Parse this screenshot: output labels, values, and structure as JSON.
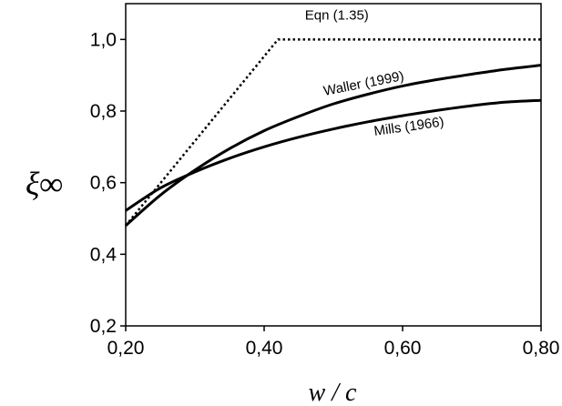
{
  "chart_data": {
    "type": "line",
    "title": "",
    "xlabel": "w / c",
    "ylabel": "ξ∞",
    "xlim": [
      0.2,
      0.8
    ],
    "ylim": [
      0.2,
      1.1
    ],
    "grid": false,
    "x_ticks": [
      {
        "value": 0.2,
        "label": "0,20"
      },
      {
        "value": 0.4,
        "label": "0,40"
      },
      {
        "value": 0.6,
        "label": "0,60"
      },
      {
        "value": 0.8,
        "label": "0,80"
      }
    ],
    "y_ticks": [
      {
        "value": 0.2,
        "label": "0,2"
      },
      {
        "value": 0.4,
        "label": "0,4"
      },
      {
        "value": 0.6,
        "label": "0,6"
      },
      {
        "value": 0.8,
        "label": "0,8"
      },
      {
        "value": 1.0,
        "label": "1,0"
      }
    ],
    "series": [
      {
        "name": "Eqn (1.35)",
        "style": "dotted",
        "x": [
          0.2,
          0.42,
          0.8
        ],
        "y": [
          0.48,
          1.0,
          1.0
        ]
      },
      {
        "name": "Waller (1999)",
        "style": "solid",
        "x": [
          0.2,
          0.25,
          0.3,
          0.35,
          0.4,
          0.45,
          0.5,
          0.55,
          0.6,
          0.65,
          0.7,
          0.75,
          0.8
        ],
        "y": [
          0.48,
          0.565,
          0.635,
          0.695,
          0.745,
          0.785,
          0.82,
          0.847,
          0.87,
          0.888,
          0.903,
          0.917,
          0.928
        ]
      },
      {
        "name": "Mills (1966)",
        "style": "solid",
        "x": [
          0.2,
          0.25,
          0.3,
          0.35,
          0.4,
          0.45,
          0.5,
          0.55,
          0.6,
          0.65,
          0.7,
          0.75,
          0.8
        ],
        "y": [
          0.522,
          0.585,
          0.63,
          0.668,
          0.7,
          0.727,
          0.75,
          0.77,
          0.787,
          0.802,
          0.815,
          0.825,
          0.83
        ]
      }
    ],
    "annotations": [
      {
        "series": "Eqn (1.35)",
        "text": "Eqn (1.35)",
        "x": 0.505,
        "y": 1.055
      },
      {
        "series": "Waller (1999)",
        "text": "Waller (1999)",
        "x": 0.545,
        "y": 0.865,
        "angle": -11
      },
      {
        "series": "Mills (1966)",
        "text": "Mills (1966)",
        "x": 0.61,
        "y": 0.745,
        "angle": -8
      }
    ]
  }
}
